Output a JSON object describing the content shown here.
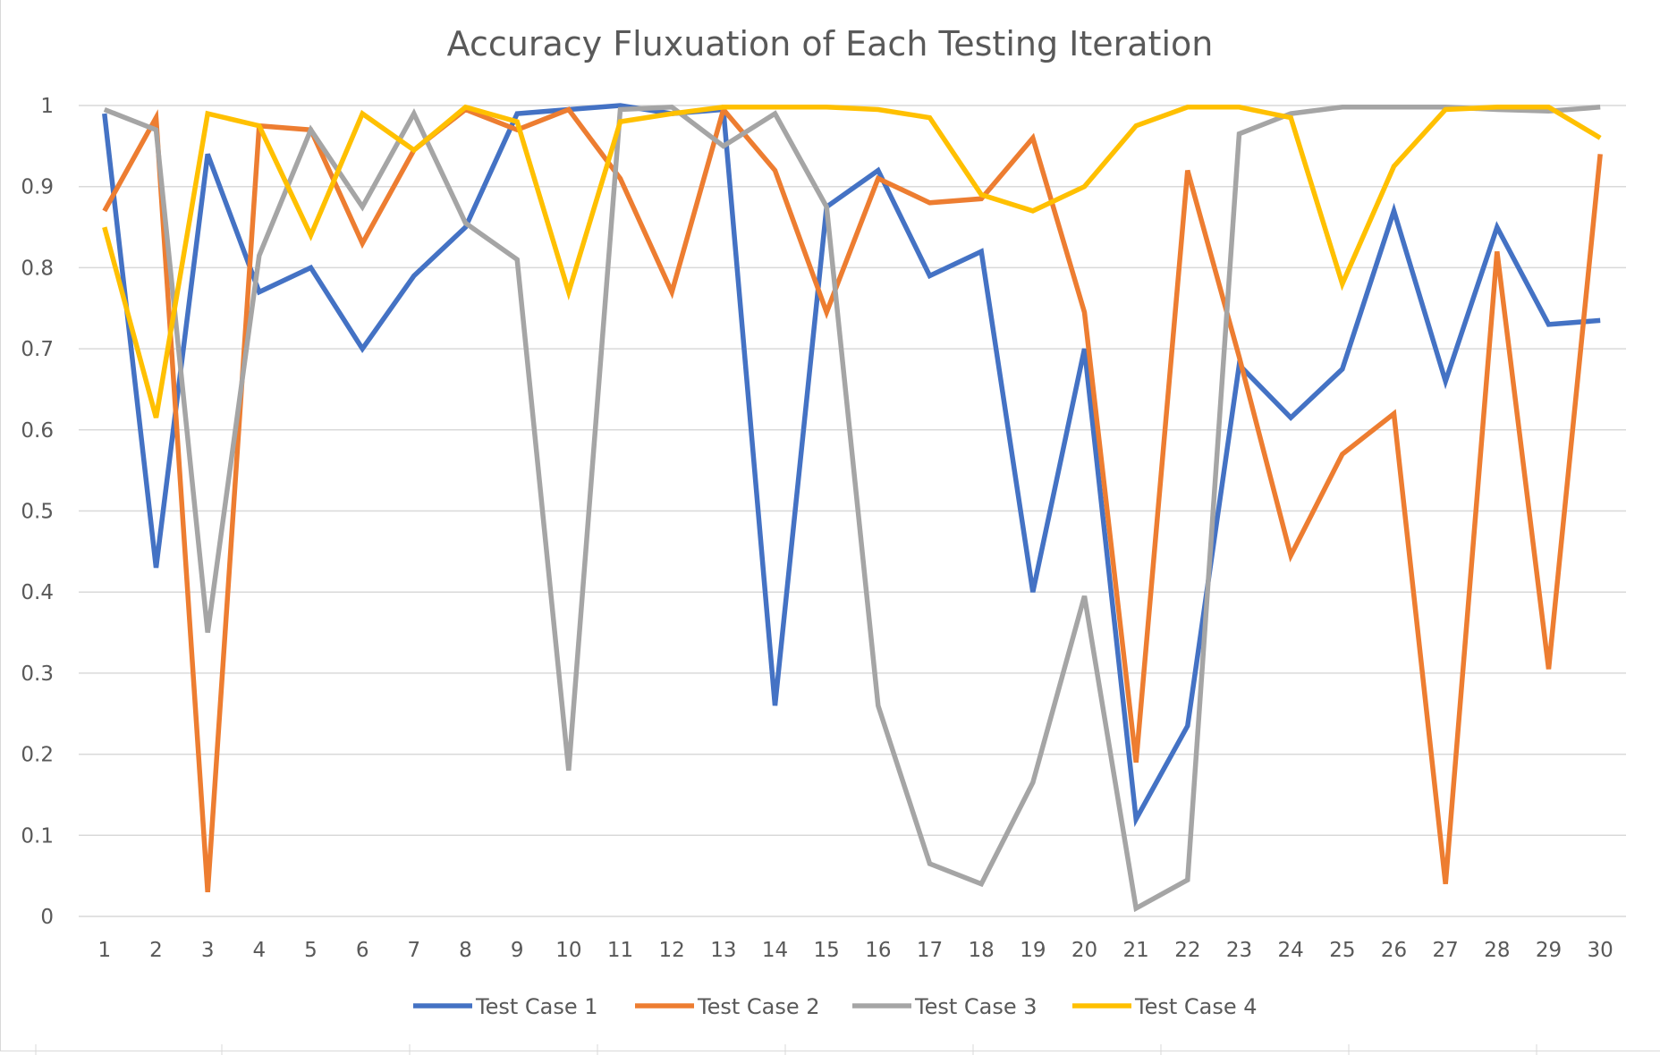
{
  "chart_data": {
    "type": "line",
    "title": "Accuracy Fluxuation of Each Testing Iteration",
    "xlabel": "",
    "ylabel": "",
    "x": [
      1,
      2,
      3,
      4,
      5,
      6,
      7,
      8,
      9,
      10,
      11,
      12,
      13,
      14,
      15,
      16,
      17,
      18,
      19,
      20,
      21,
      22,
      23,
      24,
      25,
      26,
      27,
      28,
      29,
      30
    ],
    "ylim": [
      0,
      1
    ],
    "yticks": [
      "0",
      "0.1",
      "0.2",
      "0.3",
      "0.4",
      "0.5",
      "0.6",
      "0.7",
      "0.8",
      "0.9",
      "1"
    ],
    "grid": "horizontal",
    "legend_position": "bottom",
    "series": [
      {
        "name": "Test Case 1",
        "color": "#4472C4",
        "values": [
          0.99,
          0.43,
          0.94,
          0.77,
          0.8,
          0.7,
          0.79,
          0.85,
          0.99,
          0.995,
          1.0,
          0.99,
          0.995,
          0.26,
          0.875,
          0.92,
          0.79,
          0.82,
          0.4,
          0.7,
          0.12,
          0.235,
          0.68,
          0.615,
          0.675,
          0.87,
          0.66,
          0.85,
          0.73,
          0.735
        ]
      },
      {
        "name": "Test Case 2",
        "color": "#ED7D31",
        "values": [
          0.87,
          0.985,
          0.03,
          0.975,
          0.97,
          0.83,
          0.945,
          0.995,
          0.97,
          0.995,
          0.91,
          0.77,
          0.995,
          0.92,
          0.745,
          0.91,
          0.88,
          0.885,
          0.96,
          0.745,
          0.19,
          0.92,
          0.69,
          0.445,
          0.57,
          0.62,
          0.04,
          0.82,
          0.305,
          0.94
        ]
      },
      {
        "name": "Test Case 3",
        "color": "#A5A5A5",
        "values": [
          0.995,
          0.97,
          0.35,
          0.815,
          0.97,
          0.875,
          0.99,
          0.855,
          0.81,
          0.18,
          0.995,
          0.998,
          0.95,
          0.99,
          0.875,
          0.26,
          0.065,
          0.04,
          0.165,
          0.395,
          0.01,
          0.045,
          0.965,
          0.99,
          0.998,
          0.998,
          0.998,
          0.995,
          0.993,
          0.998
        ]
      },
      {
        "name": "Test Case 4",
        "color": "#FFC000",
        "values": [
          0.85,
          0.615,
          0.99,
          0.975,
          0.84,
          0.99,
          0.945,
          0.998,
          0.98,
          0.77,
          0.98,
          0.99,
          0.998,
          0.998,
          0.998,
          0.995,
          0.985,
          0.89,
          0.87,
          0.9,
          0.975,
          0.998,
          0.998,
          0.985,
          0.78,
          0.925,
          0.995,
          0.998,
          0.998,
          0.96
        ]
      }
    ]
  }
}
